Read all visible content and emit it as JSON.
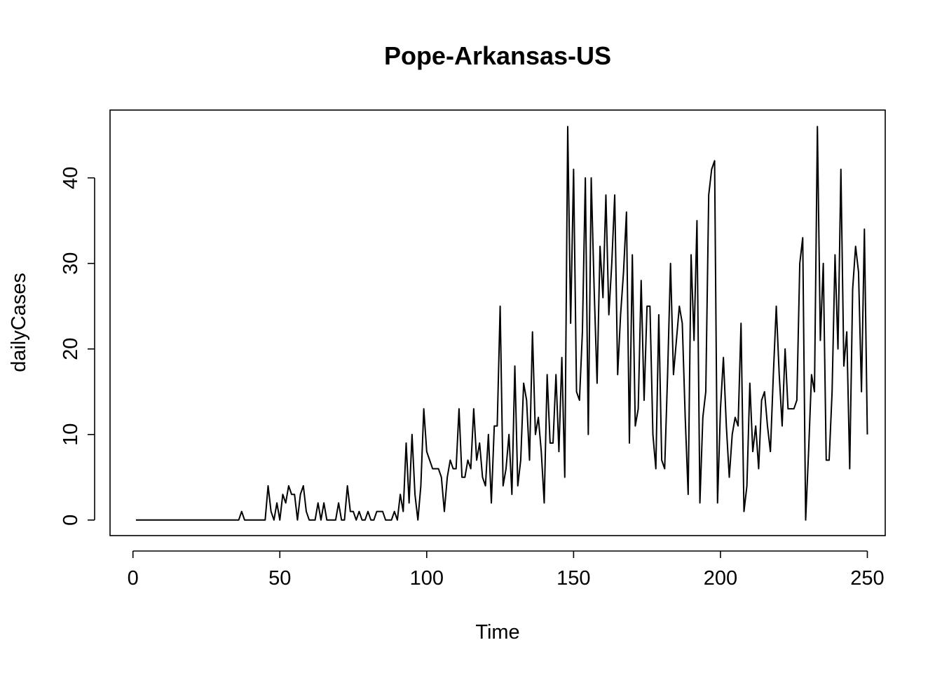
{
  "chart_data": {
    "type": "line",
    "title": "Pope-Arkansas-US",
    "xlabel": "Time",
    "ylabel": "dailyCases",
    "xlim": [
      1,
      248
    ],
    "ylim": [
      0,
      46
    ],
    "x_ticks": [
      0,
      50,
      100,
      150,
      200,
      250
    ],
    "y_ticks": [
      0,
      10,
      20,
      30,
      40
    ],
    "grid": false,
    "legend": "none",
    "line_color": "#000000",
    "series": [
      {
        "x_start": 1,
        "values": [
          0,
          0,
          0,
          0,
          0,
          0,
          0,
          0,
          0,
          0,
          0,
          0,
          0,
          0,
          0,
          0,
          0,
          0,
          0,
          0,
          0,
          0,
          0,
          0,
          0,
          0,
          0,
          0,
          0,
          0,
          0,
          0,
          0,
          0,
          0,
          0,
          1,
          0,
          0,
          0,
          0,
          0,
          0,
          0,
          0,
          4,
          1,
          0,
          2,
          0,
          3,
          2,
          4,
          3,
          3,
          0,
          3,
          4,
          1,
          0,
          0,
          0,
          2,
          0,
          2,
          0,
          0,
          0,
          0,
          2,
          0,
          0,
          4,
          1,
          1,
          0,
          1,
          0,
          0,
          1,
          0,
          0,
          1,
          1,
          1,
          0,
          0,
          0,
          1,
          0,
          3,
          1,
          9,
          2,
          10,
          3,
          0,
          4,
          13,
          8,
          7,
          6,
          6,
          6,
          5,
          1,
          5,
          7,
          6,
          6,
          13,
          5,
          5,
          7,
          6,
          13,
          7,
          9,
          5,
          4,
          10,
          2,
          11,
          11,
          25,
          4,
          6,
          10,
          3,
          18,
          4,
          7,
          16,
          14,
          7,
          22,
          10,
          12,
          8,
          2,
          17,
          9,
          9,
          17,
          8,
          19,
          5,
          46,
          23,
          41,
          15,
          14,
          22,
          40,
          10,
          40,
          27,
          16,
          32,
          26,
          38,
          24,
          30,
          38,
          17,
          24,
          29,
          36,
          9,
          31,
          11,
          13,
          28,
          14,
          25,
          25,
          10,
          6,
          24,
          7,
          6,
          17,
          30,
          17,
          21,
          25,
          23,
          12,
          3,
          31,
          21,
          35,
          2,
          12,
          15,
          38,
          41,
          42,
          2,
          13,
          19,
          11,
          5,
          10,
          12,
          11,
          23,
          1,
          4,
          16,
          8,
          11,
          6,
          14,
          15,
          11,
          8,
          17,
          25,
          17,
          11,
          20,
          13,
          13,
          13,
          14,
          30,
          33,
          0,
          8,
          17,
          15,
          46,
          21,
          30,
          7,
          7,
          15,
          31,
          20,
          41,
          18,
          22,
          6,
          27,
          32,
          29,
          15,
          34,
          10
        ]
      }
    ]
  }
}
